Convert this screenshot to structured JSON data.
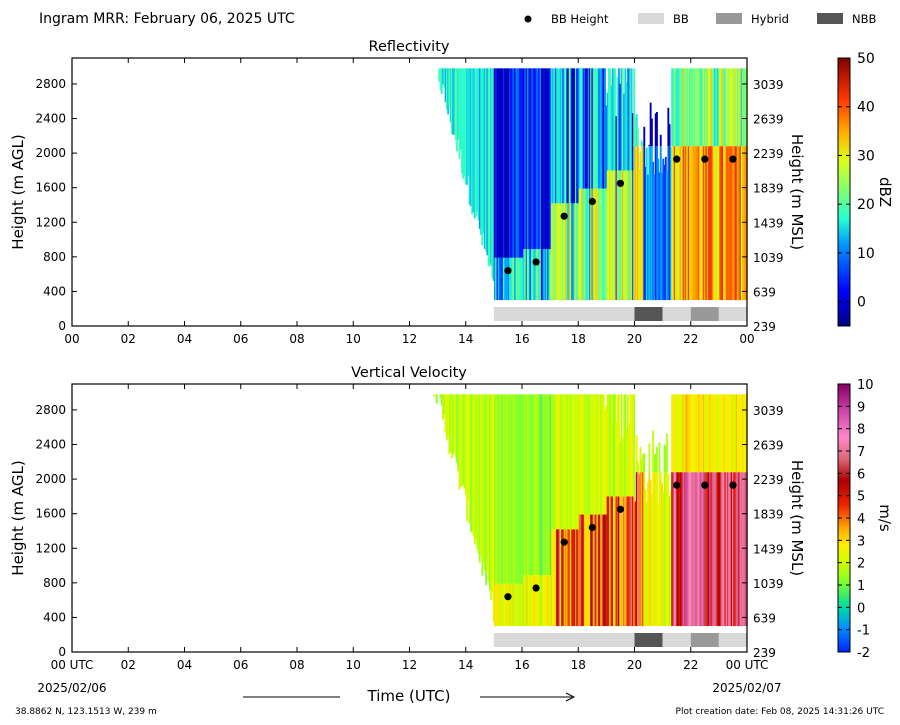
{
  "header": {
    "title": "Ingram MRR:  February 06, 2025 UTC",
    "legend": [
      {
        "label": "BB Height",
        "kind": "dot",
        "color": "#000000"
      },
      {
        "label": "BB",
        "kind": "box",
        "color": "#d9d9d9"
      },
      {
        "label": "Hybrid",
        "kind": "box",
        "color": "#999999"
      },
      {
        "label": "NBB",
        "kind": "box",
        "color": "#555555"
      }
    ]
  },
  "footer": {
    "location": "38.8862 N, 123.1513 W, 239 m",
    "creation": "Plot creation date: Feb 08, 2025 14:31:26 UTC",
    "xlabel": "Time (UTC)",
    "start_date": "2025/02/06",
    "end_date": "2025/02/07"
  },
  "chart_data": [
    {
      "type": "heatmap",
      "title": "Reflectivity",
      "xlabel": "Time (UTC)",
      "ylabel": "Height (m AGL)",
      "ylabel_right": "Height (m MSL)",
      "colorbar_label": "dBZ",
      "colorbar_range": [
        -5,
        50
      ],
      "colorbar_ticks": [
        "0",
        "10",
        "20",
        "30",
        "40",
        "50"
      ],
      "x_ticks": [
        "00",
        "02",
        "04",
        "06",
        "08",
        "10",
        "12",
        "14",
        "16",
        "18",
        "20",
        "22",
        "00"
      ],
      "y_ticks": [
        "0",
        "400",
        "800",
        "1200",
        "1600",
        "2000",
        "2400",
        "2800"
      ],
      "y_ticks_right": [
        "239",
        "639",
        "1039",
        "1439",
        "1839",
        "2239",
        "2639",
        "3039"
      ],
      "xlim": [
        0,
        24
      ],
      "ylim": [
        0,
        3100
      ],
      "bb_height": {
        "hours": [
          15.5,
          16.5,
          17.5,
          18.5,
          19.5,
          21.5,
          22.5,
          23.5
        ],
        "heights": [
          640,
          740,
          1270,
          1440,
          1650,
          1930,
          1930,
          1930
        ]
      },
      "bb_type": [
        {
          "start": 15.0,
          "end": 20.0,
          "type": "BB"
        },
        {
          "start": 20.0,
          "end": 21.0,
          "type": "NBB"
        },
        {
          "start": 21.0,
          "end": 22.0,
          "type": "BB"
        },
        {
          "start": 22.0,
          "end": 23.0,
          "type": "Hybrid"
        },
        {
          "start": 23.0,
          "end": 24.0,
          "type": "BB"
        }
      ]
    },
    {
      "type": "heatmap",
      "title": "Vertical Velocity",
      "xlabel": "Time (UTC)",
      "ylabel": "Height (m AGL)",
      "ylabel_right": "Height (m MSL)",
      "colorbar_label": "m/s",
      "colorbar_range": [
        -2,
        10
      ],
      "colorbar_ticks": [
        "-2",
        "-1",
        "0",
        "1",
        "2",
        "3",
        "4",
        "5",
        "6",
        "7",
        "8",
        "9",
        "10"
      ],
      "x_ticks": [
        "00 UTC",
        "02",
        "04",
        "06",
        "08",
        "10",
        "12",
        "14",
        "16",
        "18",
        "20",
        "22",
        "00 UTC"
      ],
      "y_ticks": [
        "0",
        "400",
        "800",
        "1200",
        "1600",
        "2000",
        "2400",
        "2800"
      ],
      "y_ticks_right": [
        "239",
        "639",
        "1039",
        "1439",
        "1839",
        "2239",
        "2639",
        "3039"
      ],
      "xlim": [
        0,
        24
      ],
      "ylim": [
        0,
        3100
      ],
      "bb_height": {
        "hours": [
          15.5,
          16.5,
          17.5,
          18.5,
          19.5,
          21.5,
          22.5,
          23.5
        ],
        "heights": [
          640,
          740,
          1270,
          1440,
          1650,
          1930,
          1930,
          1930
        ]
      },
      "bb_type": [
        {
          "start": 15.0,
          "end": 20.0,
          "type": "BB"
        },
        {
          "start": 20.0,
          "end": 21.0,
          "type": "NBB"
        },
        {
          "start": 21.0,
          "end": 22.0,
          "type": "BB"
        },
        {
          "start": 22.0,
          "end": 23.0,
          "type": "Hybrid"
        },
        {
          "start": 23.0,
          "end": 24.0,
          "type": "BB"
        }
      ]
    }
  ]
}
